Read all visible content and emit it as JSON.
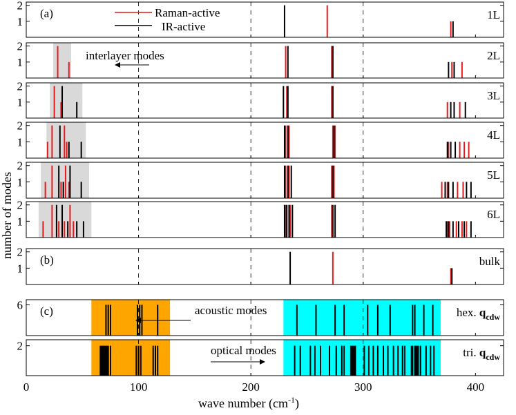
{
  "chart_data": {
    "type": "bar",
    "xlabel_main": "wave number (cm",
    "xlabel_sup": "-1",
    "xlabel_close": ")",
    "ylabel": "number of modes",
    "xlim": [
      0,
      425
    ],
    "xticks": [
      0,
      100,
      200,
      300,
      400
    ],
    "xtick_labels": [
      "0",
      "100",
      "200",
      "300",
      "400"
    ],
    "legend": {
      "raman": "Raman-active",
      "ir": "IR-active"
    },
    "colors": {
      "raman": "#e41a1c",
      "ir": "#000000",
      "interlayer": "#d9d9d9",
      "acoustic": "#ffa500",
      "optical": "#00ffff",
      "grid": "#000000"
    },
    "panels": [
      {
        "label": "1L",
        "tag": "(a)",
        "ylim": [
          0,
          2.2
        ],
        "yticks": [
          1,
          2
        ],
        "ytick_labels": [
          "1",
          "2"
        ],
        "raman": [
          [
            268,
            2
          ],
          [
            378,
            1
          ]
        ],
        "ir": [
          [
            230,
            2
          ],
          [
            380,
            1
          ]
        ]
      },
      {
        "label": "2L",
        "ylim": [
          0,
          2.2
        ],
        "yticks": [
          1,
          2
        ],
        "ytick_labels": [
          "1",
          "2"
        ],
        "interlayer_range": [
          24,
          40
        ],
        "raman": [
          [
            28,
            2
          ],
          [
            38,
            1
          ],
          [
            231,
            2
          ],
          [
            272,
            2
          ],
          [
            379,
            1
          ],
          [
            388,
            1
          ]
        ],
        "ir": [
          [
            233,
            2
          ],
          [
            273,
            2
          ],
          [
            376,
            1
          ],
          [
            381,
            1
          ]
        ]
      },
      {
        "label": "3L",
        "ylim": [
          0,
          2.2
        ],
        "yticks": [
          1,
          2
        ],
        "ytick_labels": [
          "1",
          "2"
        ],
        "interlayer_range": [
          21,
          50
        ],
        "raman": [
          [
            25,
            2
          ],
          [
            31,
            1
          ],
          [
            232,
            2
          ],
          [
            272,
            2
          ],
          [
            375,
            1
          ],
          [
            386,
            1
          ]
        ],
        "ir": [
          [
            32,
            2
          ],
          [
            45,
            1
          ],
          [
            229,
            2
          ],
          [
            233,
            2
          ],
          [
            273,
            2
          ],
          [
            378,
            1
          ],
          [
            381,
            1
          ],
          [
            391,
            1
          ]
        ]
      },
      {
        "label": "4L",
        "ylim": [
          0,
          2.2
        ],
        "yticks": [
          1,
          2
        ],
        "ytick_labels": [
          "1",
          "2"
        ],
        "interlayer_range": [
          18,
          53
        ],
        "raman": [
          [
            19,
            1
          ],
          [
            23,
            2
          ],
          [
            34,
            2
          ],
          [
            36,
            1
          ],
          [
            231,
            2
          ],
          [
            234,
            2
          ],
          [
            273,
            2
          ],
          [
            275,
            2
          ],
          [
            376,
            1
          ],
          [
            386,
            1
          ],
          [
            390,
            1
          ],
          [
            394,
            1
          ]
        ],
        "ir": [
          [
            30,
            2
          ],
          [
            38,
            1
          ],
          [
            49,
            1
          ],
          [
            230,
            2
          ],
          [
            233,
            2
          ],
          [
            274,
            2
          ],
          [
            375,
            1
          ],
          [
            378,
            1
          ],
          [
            382,
            1
          ]
        ]
      },
      {
        "label": "5L",
        "ylim": [
          0,
          2.2
        ],
        "yticks": [
          1,
          2
        ],
        "ytick_labels": [
          "1",
          "2"
        ],
        "interlayer_range": [
          13,
          56
        ],
        "raman": [
          [
            17,
            1
          ],
          [
            23,
            2
          ],
          [
            31,
            1
          ],
          [
            35,
            2
          ],
          [
            38,
            1
          ],
          [
            231,
            2
          ],
          [
            234,
            2
          ],
          [
            272,
            2
          ],
          [
            274,
            2
          ],
          [
            370,
            1
          ],
          [
            375,
            1
          ],
          [
            384,
            1
          ],
          [
            389,
            1
          ]
        ],
        "ir": [
          [
            29,
            2
          ],
          [
            33,
            1
          ],
          [
            39,
            2
          ],
          [
            49,
            1
          ],
          [
            230,
            2
          ],
          [
            233,
            2
          ],
          [
            236,
            2
          ],
          [
            273,
            2
          ],
          [
            373,
            1
          ],
          [
            376,
            1
          ],
          [
            380,
            1
          ],
          [
            392,
            1
          ],
          [
            396,
            1
          ]
        ]
      },
      {
        "label": "6L",
        "ylim": [
          0,
          2.2
        ],
        "yticks": [
          1,
          2
        ],
        "ytick_labels": [
          "1",
          "2"
        ],
        "interlayer_range": [
          11,
          58
        ],
        "raman": [
          [
            15,
            1
          ],
          [
            23,
            2
          ],
          [
            29,
            1
          ],
          [
            34,
            1
          ],
          [
            39,
            2
          ],
          [
            42,
            1
          ],
          [
            231,
            2
          ],
          [
            235,
            2
          ],
          [
            272,
            2
          ],
          [
            375,
            1
          ],
          [
            377,
            1
          ],
          [
            383,
            1
          ],
          [
            388,
            1
          ],
          [
            392,
            1
          ]
        ],
        "ir": [
          [
            27,
            2
          ],
          [
            32,
            2
          ],
          [
            37,
            1
          ],
          [
            45,
            1
          ],
          [
            51,
            1
          ],
          [
            230,
            2
          ],
          [
            232,
            2
          ],
          [
            234,
            2
          ],
          [
            237,
            2
          ],
          [
            273,
            2
          ],
          [
            275,
            2
          ],
          [
            374,
            1
          ],
          [
            376,
            1
          ],
          [
            380,
            1
          ],
          [
            385,
            1
          ],
          [
            390,
            1
          ],
          [
            396,
            1
          ]
        ]
      },
      {
        "label": "bulk",
        "tag": "(b)",
        "ylim": [
          0,
          2.2
        ],
        "yticks": [
          1,
          2
        ],
        "ytick_labels": [
          "1",
          "2"
        ],
        "raman": [
          [
            273,
            2
          ],
          [
            378,
            1
          ]
        ],
        "ir": [
          [
            235,
            2
          ],
          [
            379,
            1
          ]
        ]
      },
      {
        "label": "hex. ",
        "label_bold": "q",
        "label_sub": "cdw",
        "tag": "(c)",
        "ylim": [
          0,
          7
        ],
        "yticks": [
          6
        ],
        "ytick_labels": [
          "6"
        ],
        "acoustic_range": [
          58,
          128
        ],
        "optical_range": [
          229,
          369
        ],
        "annotation": "acoustic modes",
        "ir": [
          [
            71,
            6
          ],
          [
            73,
            6
          ],
          [
            75,
            6
          ],
          [
            99,
            6
          ],
          [
            101,
            6
          ],
          [
            103,
            6
          ],
          [
            117,
            6
          ],
          [
            241,
            6
          ],
          [
            258,
            6
          ],
          [
            275,
            6
          ],
          [
            283,
            6
          ],
          [
            304,
            6
          ],
          [
            313,
            6
          ],
          [
            324,
            6
          ],
          [
            344,
            6
          ],
          [
            346,
            6
          ],
          [
            354,
            6
          ],
          [
            362,
            6
          ]
        ]
      },
      {
        "label": "tri. ",
        "label_bold": "q",
        "label_sub": "cdw",
        "ylim": [
          0,
          2.4
        ],
        "yticks": [
          2
        ],
        "ytick_labels": [
          "2"
        ],
        "acoustic_range": [
          58,
          128
        ],
        "optical_range": [
          229,
          369
        ],
        "annotation": "optical modes",
        "ir": [
          [
            66,
            2
          ],
          [
            67,
            2
          ],
          [
            68,
            2
          ],
          [
            69,
            2
          ],
          [
            70,
            2
          ],
          [
            71,
            2
          ],
          [
            72,
            2
          ],
          [
            73,
            2
          ],
          [
            75,
            2
          ],
          [
            98,
            2
          ],
          [
            100,
            2
          ],
          [
            102,
            2
          ],
          [
            113,
            2
          ],
          [
            115,
            2
          ],
          [
            117,
            2
          ],
          [
            239,
            2
          ],
          [
            244,
            2
          ],
          [
            253,
            2
          ],
          [
            257,
            2
          ],
          [
            262,
            2
          ],
          [
            270,
            2
          ],
          [
            276,
            2
          ],
          [
            281,
            2
          ],
          [
            283,
            2
          ],
          [
            289,
            2
          ],
          [
            290,
            2
          ],
          [
            291,
            2
          ],
          [
            292,
            2
          ],
          [
            293,
            2
          ],
          [
            301,
            2
          ],
          [
            305,
            2
          ],
          [
            309,
            2
          ],
          [
            313,
            2
          ],
          [
            318,
            2
          ],
          [
            322,
            2
          ],
          [
            327,
            2
          ],
          [
            331,
            2
          ],
          [
            335,
            2
          ],
          [
            337,
            2
          ],
          [
            343,
            2
          ],
          [
            344,
            2
          ],
          [
            346,
            2
          ],
          [
            347,
            2
          ],
          [
            348,
            2
          ],
          [
            349,
            2
          ],
          [
            351,
            2
          ],
          [
            356,
            2
          ],
          [
            360,
            2
          ],
          [
            363,
            2
          ]
        ]
      }
    ],
    "annotations": {
      "interlayer": "interlayer modes"
    }
  }
}
